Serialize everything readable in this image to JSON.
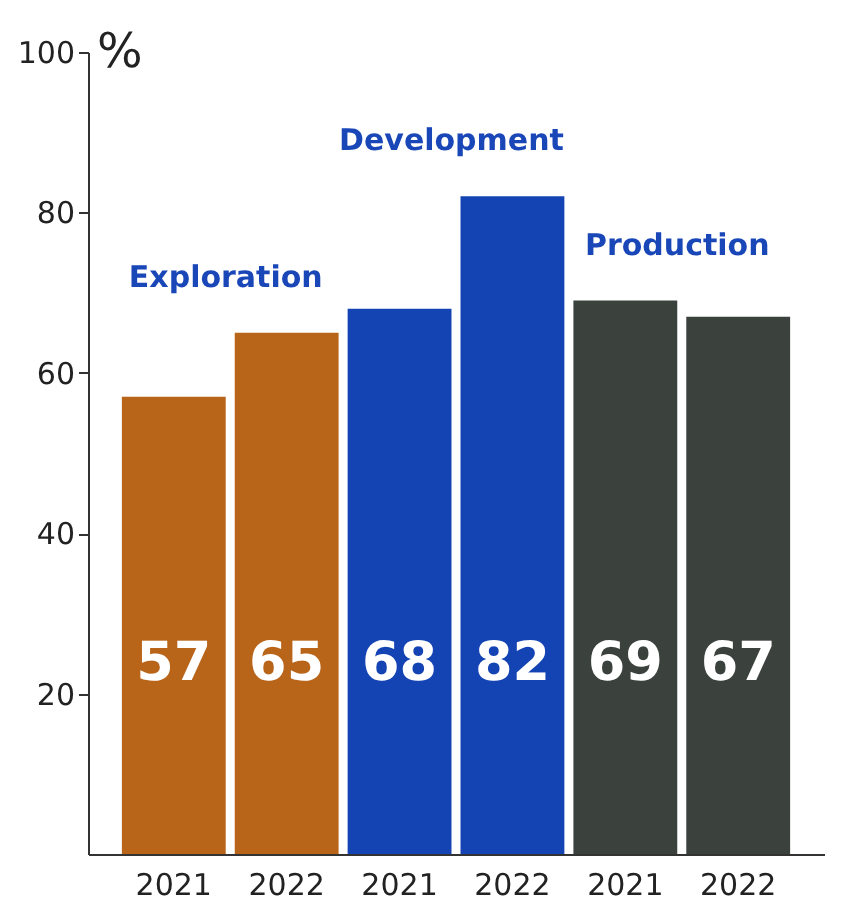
{
  "chart_data": {
    "type": "bar",
    "ylabel": "%",
    "categories": [
      "2021",
      "2022",
      "2021",
      "2022",
      "2021",
      "2022"
    ],
    "values": [
      57,
      65,
      68,
      82,
      69,
      67
    ],
    "colors": [
      "#b8651a",
      "#b8651a",
      "#1444b4",
      "#1444b4",
      "#3b423e",
      "#3b423e"
    ],
    "ylim": [
      0,
      100
    ],
    "yticks": [
      20,
      40,
      60,
      80,
      100
    ],
    "grid": false,
    "data_labels": true,
    "annotations": [
      "Exploration",
      "Development",
      "Production"
    ]
  }
}
